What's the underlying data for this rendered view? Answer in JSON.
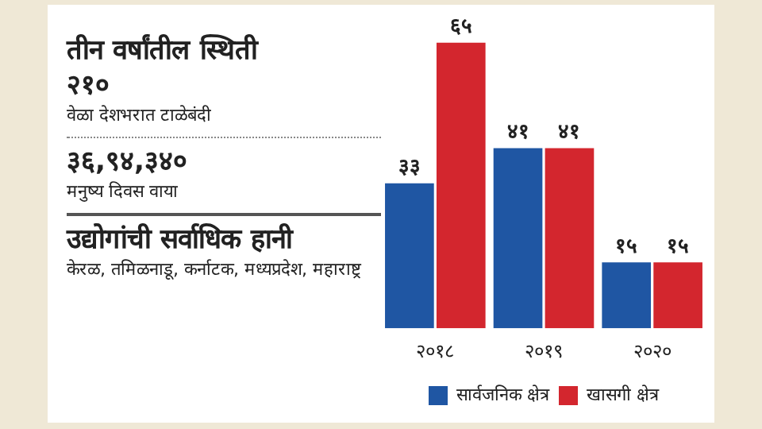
{
  "chart_data": [
    {
      "type": "other",
      "title": "तीन वर्षांतील स्थिती",
      "annotations": [
        "२१०",
        "वेळा देशभरात टाळेबंदी",
        "३६,९४,३४०",
        "मनुष्य दिवस वाया",
        "उद्योगांची सर्वाधिक हानी",
        "केरळ, तमिळनाडू, कर्नाटक, मध्यप्रदेश, महाराष्ट्र"
      ]
    },
    {
      "type": "bar",
      "categories": [
        "२०१८",
        "२०१९",
        "२०२०"
      ],
      "legend": "bottom",
      "grid": false,
      "tick_labels": "x",
      "series": [
        {
          "name": "सार्वजनिक क्षेत्र",
          "color": "#1f56a3",
          "values": [
            33,
            41,
            15
          ],
          "value_labels": [
            "३३",
            "४१",
            "१५"
          ]
        },
        {
          "name": "खासगी क्षेत्र",
          "color": "#d3262e",
          "values": [
            65,
            41,
            15
          ],
          "value_labels": [
            "६५",
            "४१",
            "१५"
          ]
        }
      ]
    }
  ]
}
